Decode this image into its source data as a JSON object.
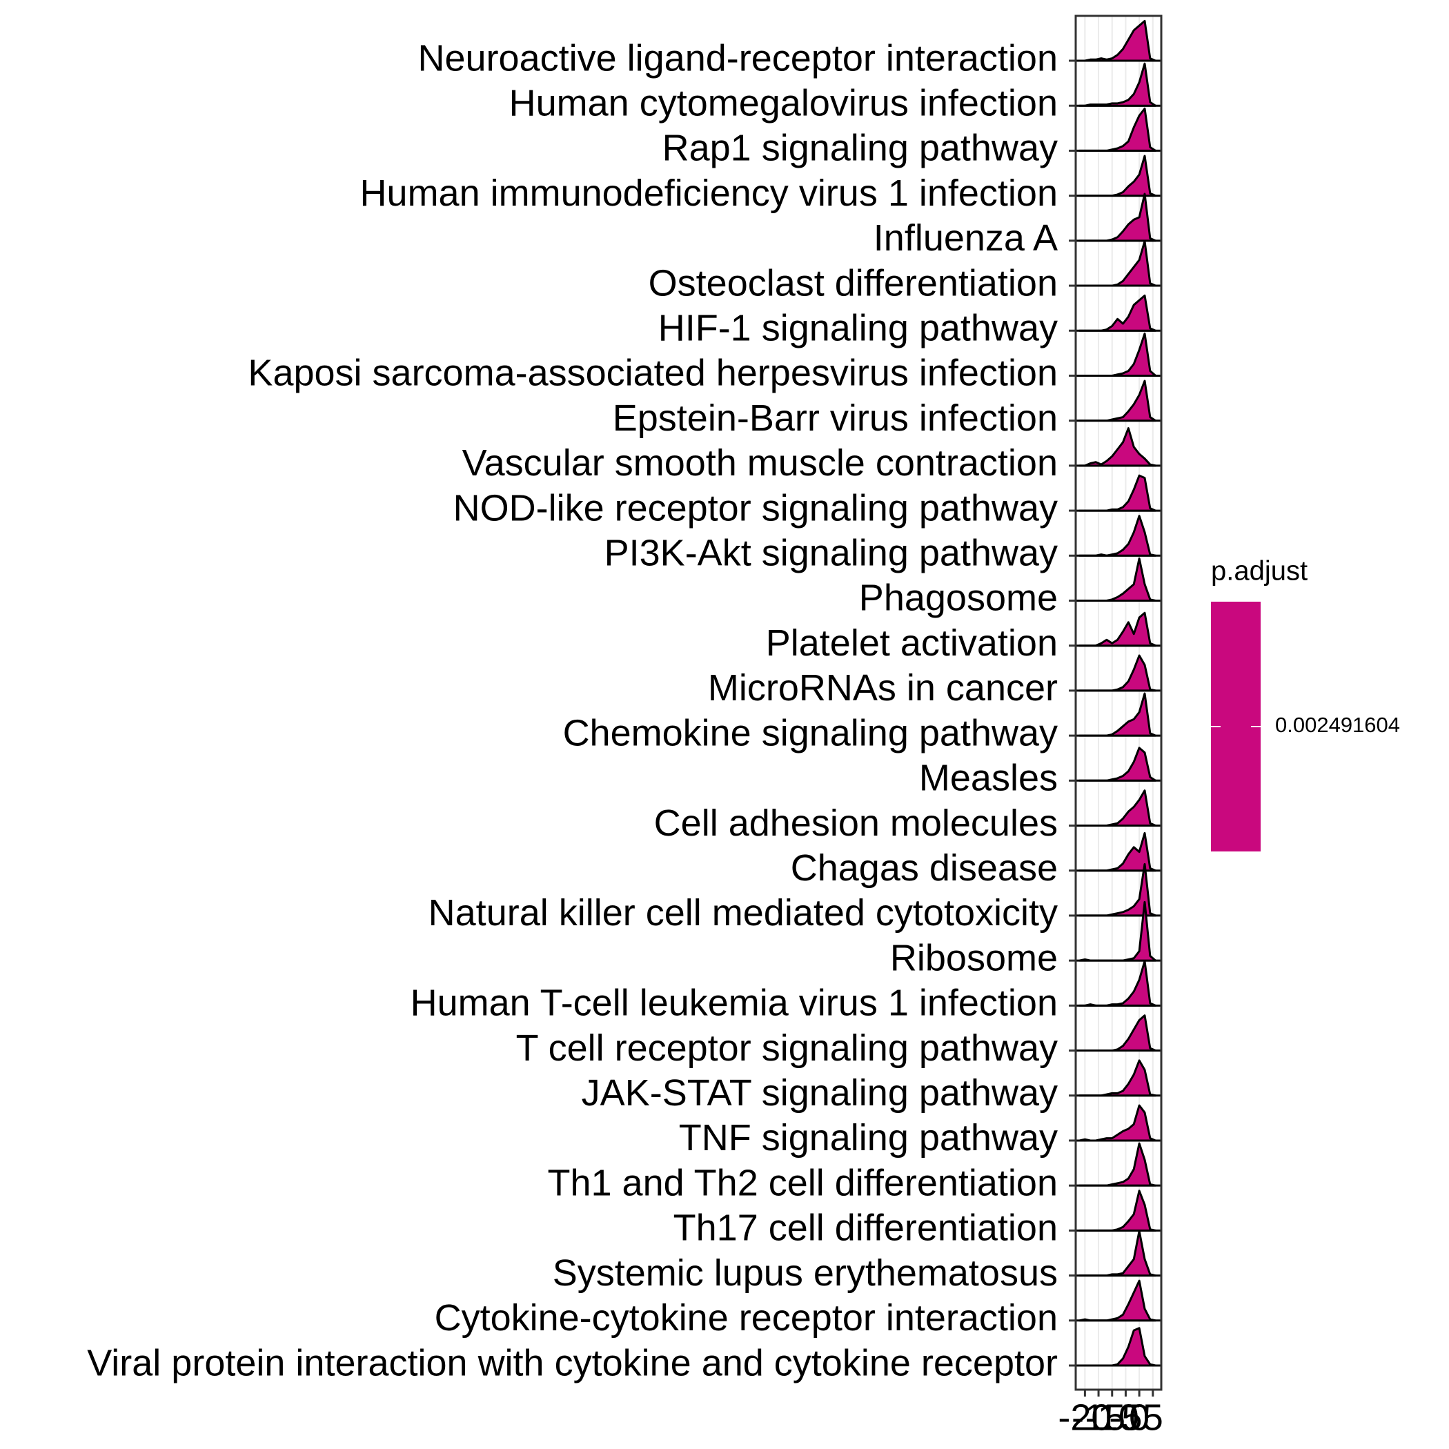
{
  "chart_data": {
    "type": "ridgeline",
    "categories": [
      "Neuroactive ligand-receptor interaction",
      "Human cytomegalovirus infection",
      "Rap1 signaling pathway",
      "Human immunodeficiency virus 1 infection",
      "Influenza A",
      "Osteoclast differentiation",
      "HIF-1 signaling pathway",
      "Kaposi sarcoma-associated herpesvirus infection",
      "Epstein-Barr virus infection",
      "Vascular smooth muscle contraction",
      "NOD-like receptor signaling pathway",
      "PI3K-Akt signaling pathway",
      "Phagosome",
      "Platelet activation",
      "MicroRNAs in cancer",
      "Chemokine signaling pathway",
      "Measles",
      "Cell adhesion molecules",
      "Chagas disease",
      "Natural killer cell mediated cytotoxicity",
      "Ribosome",
      "Human T-cell leukemia virus 1 infection",
      "T cell receptor signaling pathway",
      "JAK-STAT signaling pathway",
      "TNF signaling pathway",
      "Th1 and Th2 cell differentiation",
      "Th17 cell differentiation",
      "Systemic lupus erythematosus",
      "Cytokine-cytokine receptor interaction",
      "Viral protein interaction with cytokine and cytokine receptor"
    ],
    "x": [
      -22,
      -20,
      -18,
      -16,
      -14,
      -12,
      -10,
      -8,
      -6,
      -4,
      -2,
      0,
      2,
      4,
      6
    ],
    "densities": [
      [
        0,
        0,
        0.01,
        0.01,
        0.02,
        0.01,
        0.02,
        0.05,
        0.1,
        0.18,
        0.26,
        0.3,
        0.34,
        0.02,
        0
      ],
      [
        0,
        0,
        0.01,
        0.01,
        0.01,
        0.01,
        0.02,
        0.02,
        0.03,
        0.05,
        0.1,
        0.2,
        0.36,
        0.03,
        0
      ],
      [
        0,
        0,
        0,
        0,
        0,
        0,
        0.01,
        0.02,
        0.04,
        0.08,
        0.2,
        0.3,
        0.36,
        0.03,
        0
      ],
      [
        0,
        0,
        0,
        0,
        0,
        0,
        0,
        0.01,
        0.03,
        0.08,
        0.12,
        0.18,
        0.34,
        0.02,
        0
      ],
      [
        0,
        0,
        0,
        0,
        0,
        0,
        0.01,
        0.03,
        0.08,
        0.14,
        0.18,
        0.2,
        0.4,
        0.02,
        0
      ],
      [
        0,
        0,
        0,
        0,
        0,
        0,
        0,
        0.01,
        0.04,
        0.1,
        0.16,
        0.22,
        0.38,
        0.02,
        0
      ],
      [
        0,
        0,
        0,
        0,
        0,
        0.01,
        0.04,
        0.1,
        0.06,
        0.12,
        0.22,
        0.26,
        0.3,
        0.02,
        0
      ],
      [
        0,
        0,
        0,
        0,
        0,
        0,
        0,
        0.01,
        0.02,
        0.04,
        0.1,
        0.22,
        0.36,
        0.04,
        0
      ],
      [
        0,
        0,
        0,
        0,
        0,
        0,
        0.01,
        0.02,
        0.03,
        0.08,
        0.14,
        0.22,
        0.34,
        0.03,
        0
      ],
      [
        0,
        0,
        0.02,
        0.03,
        0.01,
        0.04,
        0.08,
        0.14,
        0.2,
        0.32,
        0.16,
        0.1,
        0.06,
        0.01,
        0
      ],
      [
        0,
        0,
        0,
        0,
        0,
        0,
        0.01,
        0.01,
        0.03,
        0.08,
        0.18,
        0.3,
        0.28,
        0.02,
        0
      ],
      [
        0,
        0,
        0,
        0,
        0.01,
        0,
        0.01,
        0.02,
        0.05,
        0.1,
        0.2,
        0.34,
        0.2,
        0.01,
        0
      ],
      [
        0,
        0,
        0,
        0,
        0,
        0,
        0.01,
        0.03,
        0.06,
        0.1,
        0.14,
        0.36,
        0.14,
        0.01,
        0
      ],
      [
        0,
        0,
        0,
        0,
        0.02,
        0.05,
        0.02,
        0.05,
        0.12,
        0.2,
        0.1,
        0.24,
        0.28,
        0.02,
        0
      ],
      [
        0,
        0,
        0,
        0,
        0,
        0,
        0,
        0.01,
        0.03,
        0.08,
        0.18,
        0.3,
        0.22,
        0.01,
        0
      ],
      [
        0,
        0,
        0,
        0,
        0,
        0,
        0.01,
        0.04,
        0.08,
        0.12,
        0.14,
        0.2,
        0.36,
        0.02,
        0
      ],
      [
        0,
        0,
        0,
        0,
        0,
        0,
        0.01,
        0.02,
        0.04,
        0.08,
        0.16,
        0.28,
        0.24,
        0.03,
        0
      ],
      [
        0,
        0,
        0,
        0,
        0,
        0,
        0.01,
        0.02,
        0.06,
        0.12,
        0.16,
        0.22,
        0.3,
        0.02,
        0
      ],
      [
        0,
        0,
        0,
        0,
        0,
        0,
        0.01,
        0.02,
        0.06,
        0.14,
        0.2,
        0.16,
        0.32,
        0.02,
        0
      ],
      [
        0,
        0,
        0,
        0,
        0,
        0,
        0.01,
        0.02,
        0.03,
        0.05,
        0.08,
        0.14,
        0.44,
        0.02,
        0
      ],
      [
        0,
        0.01,
        0,
        0,
        0,
        0,
        0,
        0,
        0,
        0.01,
        0.02,
        0.08,
        0.5,
        0.04,
        0
      ],
      [
        0,
        0,
        0.01,
        0,
        0,
        0,
        0.01,
        0.01,
        0.02,
        0.06,
        0.12,
        0.22,
        0.38,
        0.02,
        0
      ],
      [
        0,
        0,
        0,
        0,
        0,
        0,
        0,
        0.01,
        0.04,
        0.1,
        0.18,
        0.26,
        0.3,
        0.02,
        0
      ],
      [
        0,
        0,
        0,
        0,
        0,
        0.01,
        0.02,
        0.02,
        0.04,
        0.1,
        0.18,
        0.3,
        0.22,
        0.01,
        0
      ],
      [
        0,
        0.01,
        0,
        0,
        0.01,
        0.02,
        0.02,
        0.05,
        0.08,
        0.1,
        0.14,
        0.3,
        0.24,
        0.02,
        0
      ],
      [
        0,
        0,
        0,
        0,
        0,
        0,
        0.01,
        0.02,
        0.03,
        0.06,
        0.14,
        0.36,
        0.22,
        0.01,
        0
      ],
      [
        0,
        0,
        0,
        0,
        0,
        0,
        0,
        0.01,
        0.03,
        0.08,
        0.14,
        0.34,
        0.22,
        0.01,
        0
      ],
      [
        0,
        0,
        0,
        0,
        0,
        0,
        0.01,
        0.01,
        0.02,
        0.08,
        0.14,
        0.38,
        0.14,
        0.01,
        0
      ],
      [
        0,
        0.01,
        0,
        0,
        0,
        0,
        0.01,
        0.02,
        0.05,
        0.14,
        0.24,
        0.34,
        0.1,
        0.01,
        0
      ],
      [
        0,
        0,
        0,
        0,
        0,
        0,
        0,
        0.01,
        0.06,
        0.16,
        0.3,
        0.32,
        0.08,
        0.01,
        0
      ]
    ],
    "color": "#c9087e",
    "xlim": [
      -23.4,
      8.1
    ],
    "xticks": [
      -20,
      -15,
      -10,
      -5,
      0,
      5
    ],
    "grid": true,
    "legend": {
      "title": "p.adjust",
      "ticks": [
        0.002491604
      ]
    }
  }
}
